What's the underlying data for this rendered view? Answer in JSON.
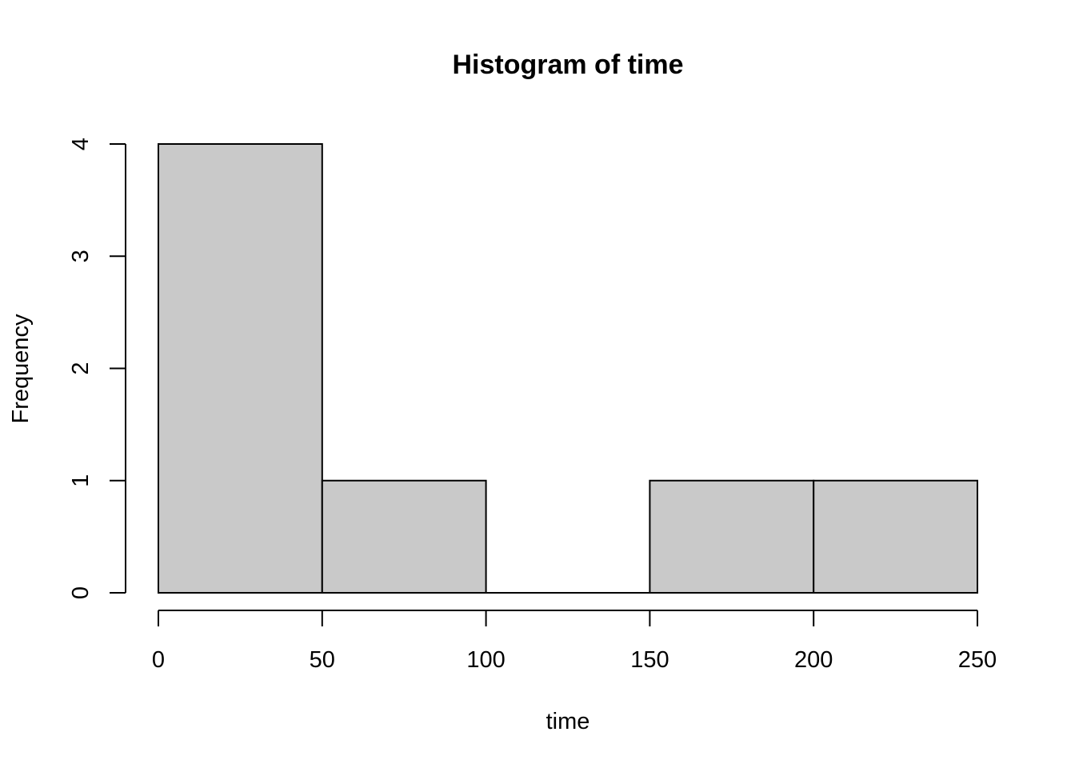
{
  "chart_data": {
    "type": "bar",
    "title": "Histogram of time",
    "xlabel": "time",
    "ylabel": "Frequency",
    "bins": [
      {
        "start": 0,
        "end": 50,
        "count": 4
      },
      {
        "start": 50,
        "end": 100,
        "count": 1
      },
      {
        "start": 100,
        "end": 150,
        "count": 0
      },
      {
        "start": 150,
        "end": 200,
        "count": 1
      },
      {
        "start": 200,
        "end": 250,
        "count": 1
      }
    ],
    "xlim": [
      0,
      250
    ],
    "ylim": [
      0,
      4
    ],
    "x_ticks": [
      0,
      50,
      100,
      150,
      200,
      250
    ],
    "y_ticks": [
      0,
      1,
      2,
      3,
      4
    ],
    "bar_color": "#c9c9c9",
    "grid": false,
    "legend": "none"
  }
}
